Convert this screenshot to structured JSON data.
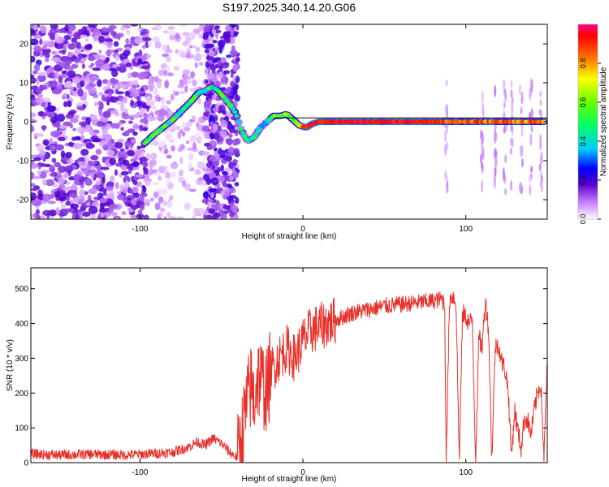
{
  "title": "S197.2025.340.14.20.G06",
  "colors": {
    "snr_line": "#e8302a",
    "tracking_line": "#000000",
    "axis": "#000000"
  },
  "chart_data": [
    {
      "type": "heatmap",
      "name": "spectrogram",
      "xlabel": "Height of straight line (km)",
      "ylabel": "Frequency (Hz)",
      "xlim": [
        -167,
        150
      ],
      "ylim": [
        -25,
        25
      ],
      "xticks": [
        -100,
        0,
        100
      ],
      "yticks": [
        -20,
        -10,
        0,
        10,
        20
      ],
      "colorbar": {
        "label": "Normalized spectral amplitude",
        "range": [
          0,
          1
        ],
        "ticks": [
          "0.0",
          "0.2",
          "0.4",
          "0.6",
          "0.8"
        ],
        "tick_values": [
          0.0,
          0.2,
          0.4,
          0.6,
          0.8
        ]
      },
      "tracked_signal_ridge": {
        "x": [
          -97,
          -92,
          -86,
          -80,
          -74,
          -68,
          -64,
          -60,
          -56,
          -52,
          -48,
          -44,
          -41,
          -38,
          -34,
          -30,
          -26,
          -22,
          -18,
          -14,
          -10,
          -6,
          -2,
          2,
          6,
          10,
          20,
          40,
          60,
          80,
          100,
          120,
          148
        ],
        "y": [
          -5.5,
          -3.5,
          -1.5,
          0.5,
          3,
          5.5,
          7.5,
          8,
          9,
          8,
          6,
          4,
          2,
          -2,
          -5,
          -4,
          -1.5,
          0,
          1.5,
          1.5,
          2,
          0.5,
          -1,
          -1.5,
          -0.5,
          0,
          0,
          0,
          0,
          0,
          0,
          0,
          0
        ]
      },
      "reference_line": {
        "x_start": -18,
        "x_end": 150,
        "y": 1
      }
    },
    {
      "type": "line",
      "name": "snr",
      "xlabel": "Height of straight line (km)",
      "ylabel": "SNR (10 * v/v)",
      "xlim": [
        -167,
        150
      ],
      "ylim": [
        0,
        560
      ],
      "xticks": [
        -100,
        0,
        100
      ],
      "yticks": [
        0,
        100,
        200,
        300,
        400,
        500
      ],
      "series": [
        {
          "name": "SNR",
          "x": [
            -167,
            -150,
            -130,
            -110,
            -95,
            -80,
            -70,
            -65,
            -60,
            -55,
            -50,
            -45,
            -42,
            -40,
            -38,
            -35,
            -32,
            -30,
            -28,
            -25,
            -22,
            -20,
            -15,
            -10,
            -5,
            0,
            5,
            10,
            15,
            20,
            25,
            30,
            40,
            50,
            60,
            70,
            80,
            85,
            87,
            88,
            90,
            92,
            94,
            96,
            98,
            100,
            102,
            104,
            106,
            108,
            110,
            112,
            114,
            116,
            118,
            120,
            122,
            124,
            126,
            128,
            130,
            132,
            134,
            136,
            138,
            140,
            142,
            144,
            146,
            148,
            150
          ],
          "y": [
            25,
            22,
            24,
            22,
            25,
            30,
            45,
            60,
            50,
            70,
            55,
            30,
            20,
            15,
            60,
            150,
            220,
            180,
            250,
            230,
            200,
            260,
            300,
            330,
            300,
            350,
            380,
            390,
            400,
            410,
            420,
            430,
            440,
            450,
            455,
            460,
            465,
            470,
            460,
            10,
            470,
            480,
            460,
            10,
            430,
            420,
            400,
            410,
            10,
            360,
            330,
            470,
            380,
            10,
            330,
            340,
            290,
            270,
            210,
            20,
            150,
            90,
            40,
            130,
            120,
            80,
            150,
            200,
            230,
            10,
            300
          ]
        }
      ]
    }
  ]
}
